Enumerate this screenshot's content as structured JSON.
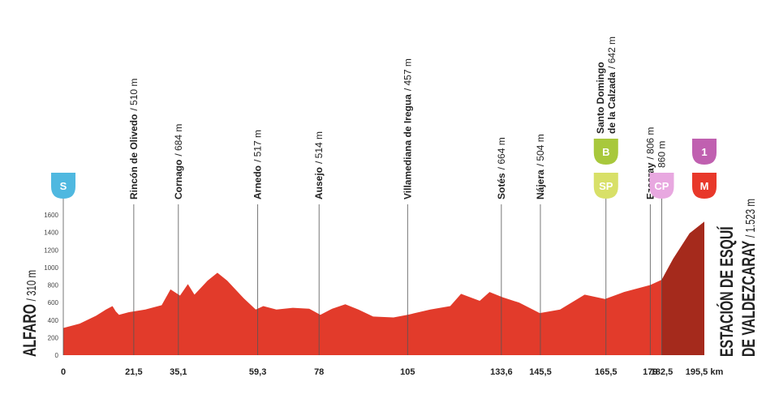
{
  "chart_data": {
    "type": "area",
    "x": [
      0,
      5,
      10,
      13,
      15,
      16,
      17,
      20,
      25,
      30,
      32.7,
      35.6,
      38,
      40,
      44,
      47,
      50,
      55,
      58.7,
      61,
      65,
      70,
      75,
      78.4,
      82,
      86,
      90,
      94.5,
      100.7,
      105,
      111.9,
      118,
      121.3,
      127,
      130,
      134,
      139,
      145.3,
      151.5,
      159,
      165.2,
      171,
      179,
      182.5,
      186,
      191,
      195.5
    ],
    "values": [
      310,
      360,
      450,
      520,
      560,
      500,
      460,
      490,
      520,
      570,
      750,
      680,
      810,
      690,
      850,
      940,
      850,
      650,
      520,
      560,
      520,
      540,
      530,
      460,
      530,
      580,
      520,
      440,
      430,
      460,
      520,
      560,
      700,
      620,
      720,
      660,
      600,
      480,
      520,
      690,
      640,
      720,
      800,
      860,
      1100,
      1390,
      1523
    ],
    "color": "#e23b2b",
    "climb_color": "#a52a1c",
    "xlim": [
      0,
      195.5
    ],
    "xticks": [
      0,
      {
        "value": 21.5,
        "label": "21,5"
      },
      {
        "value": 35.1,
        "label": "35,1"
      },
      {
        "value": 59.3,
        "label": "59,3"
      },
      78,
      105,
      {
        "value": 133.6,
        "label": "133,6"
      },
      {
        "value": 145.5,
        "label": "145,5"
      },
      {
        "value": 165.5,
        "label": "165,5"
      },
      179,
      {
        "value": 182.5,
        "label": "182,5"
      },
      {
        "value": 195.5,
        "label": "195,5 km"
      }
    ],
    "ylim": [
      0,
      1600
    ],
    "yticks": [
      0,
      200,
      400,
      600,
      800,
      1000,
      1200,
      1400,
      1600
    ],
    "start": {
      "name": "ALFARO",
      "elevation_label": "/ 310 m",
      "badges": [
        {
          "text": "S",
          "color": "#4fb8e0"
        }
      ]
    },
    "finish": {
      "name_lines": [
        "ESTACIÓN DE ESQUÍ",
        "DE VALDEZCARAY"
      ],
      "elevation_label": "/ 1.523 m",
      "badges": [
        {
          "text": "1",
          "color": "#c060b0"
        },
        {
          "text": "M",
          "color": "#e8382a"
        }
      ]
    },
    "waypoints": [
      {
        "name_lines": [
          "Rincón de Olivedo"
        ],
        "elevation_label": "/ 510 m",
        "badges": []
      },
      {
        "name_lines": [
          "Cornago"
        ],
        "elevation_label": "/ 684 m",
        "badges": []
      },
      {
        "name_lines": [
          "Arnedo"
        ],
        "elevation_label": "/ 517 m",
        "badges": []
      },
      {
        "name_lines": [
          "Ausejo"
        ],
        "elevation_label": "/ 514 m",
        "badges": []
      },
      {
        "name_lines": [
          "Villamediana de Iregua"
        ],
        "elevation_label": "/ 457 m",
        "badges": []
      },
      {
        "name_lines": [
          "Sotés"
        ],
        "elevation_label": "/ 664 m",
        "badges": []
      },
      {
        "name_lines": [
          "Nájera"
        ],
        "elevation_label": "/ 504 m",
        "badges": []
      },
      {
        "name_lines": [
          "Santo Domingo",
          "de la Calzada"
        ],
        "elevation_label": "/ 642 m",
        "badges": [
          {
            "text": "B",
            "color": "#a8c83c"
          },
          {
            "text": "SP",
            "color": "#d8e068"
          }
        ]
      },
      {
        "name_lines": [
          "Ezcaray"
        ],
        "elevation_label": "/ 806 m",
        "badges": []
      },
      {
        "name_lines": [],
        "elevation_label": "860 m",
        "badges": [
          {
            "text": "CP",
            "color": "#e8a8e0"
          }
        ]
      }
    ]
  }
}
